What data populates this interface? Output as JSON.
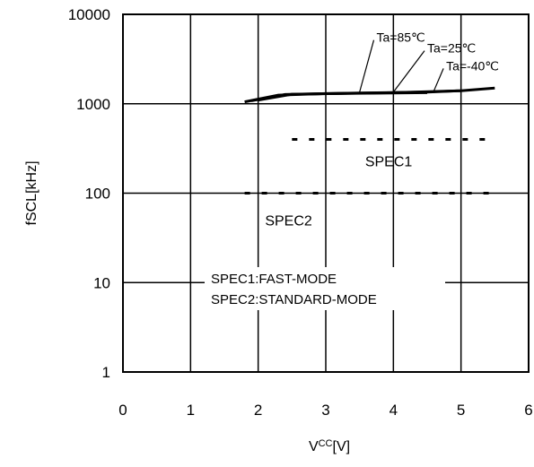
{
  "chart_data": {
    "type": "line",
    "xlabel_main": "V",
    "xlabel_sub": "CC",
    "xlabel_unit": "[V]",
    "ylabel": "fSCL[kHz]",
    "xlim": [
      0,
      6
    ],
    "ylim": [
      1,
      10000
    ],
    "y_scale": "log",
    "grid": true,
    "x_ticks": [
      "0",
      "1",
      "2",
      "3",
      "4",
      "5",
      "6"
    ],
    "y_ticks": [
      {
        "value": 1,
        "label": "1"
      },
      {
        "value": 10,
        "label": "10"
      },
      {
        "value": 100,
        "label": "100"
      },
      {
        "value": 1000,
        "label": "1000"
      },
      {
        "value": 10000,
        "label": "10000"
      }
    ],
    "series": [
      {
        "name": "Ta=85℃",
        "x": [
          1.8,
          2.3,
          3.0,
          4.0,
          4.5
        ],
        "y": [
          1050,
          1250,
          1300,
          1320,
          1330
        ]
      },
      {
        "name": "Ta=25℃",
        "x": [
          1.9,
          2.4,
          3.5,
          4.5,
          5.0
        ],
        "y": [
          1080,
          1270,
          1320,
          1350,
          1400
        ]
      },
      {
        "name": "Ta=-40℃",
        "x": [
          2.0,
          2.5,
          4.0,
          5.0,
          5.5
        ],
        "y": [
          1100,
          1280,
          1330,
          1400,
          1500
        ]
      }
    ],
    "reference_lines": [
      {
        "name": "SPEC1",
        "x_start": 2.5,
        "x_end": 5.5,
        "y": 400
      },
      {
        "name": "SPEC2",
        "x_start": 1.8,
        "x_end": 5.5,
        "y": 100
      }
    ],
    "annotations": [
      {
        "text": "Ta=85℃",
        "x": 3.5,
        "y": 1350,
        "tx": 3.75,
        "ty": 5400
      },
      {
        "text": "Ta=25℃",
        "x": 4.0,
        "y": 1350,
        "tx": 4.5,
        "ty": 4100
      },
      {
        "text": "Ta=-40℃",
        "x": 4.6,
        "y": 1400,
        "tx": 4.78,
        "ty": 2600
      }
    ],
    "region_labels": [
      {
        "text": "SPEC1",
        "x": 3.93,
        "y": 230
      },
      {
        "text": "SPEC2",
        "x": 2.45,
        "y": 50
      }
    ],
    "legend_note": [
      "SPEC1:FAST-MODE",
      "SPEC2:STANDARD-MODE"
    ],
    "colors": {
      "line": "#000000",
      "grid": "#000000",
      "background": "#ffffff"
    }
  }
}
